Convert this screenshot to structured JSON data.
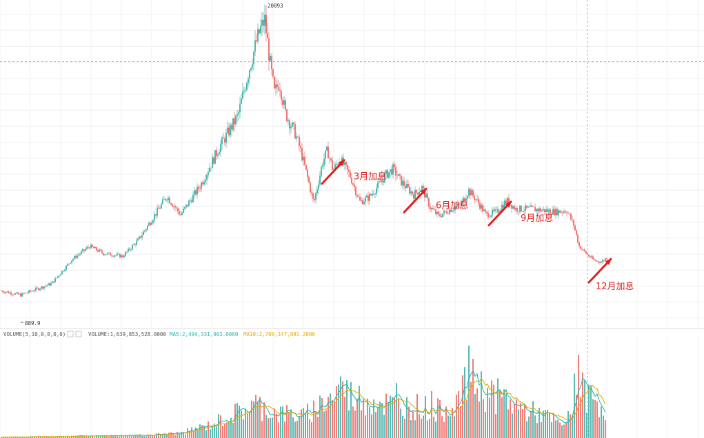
{
  "colors": {
    "up": "#26a69a",
    "down": "#ef5350",
    "annotation": "#e02020",
    "grid": "#f0f0f0",
    "crosshair": "#9a9a9a",
    "vol_label": "#555555",
    "ma5": "#26b6b0",
    "ma10": "#e6a800",
    "text": "#333333"
  },
  "chart_data": {
    "type": "candlestick",
    "title": "",
    "price_panel": {
      "max_label": "20093",
      "min_label": "889.9",
      "ylim": [
        -1400,
        21500
      ],
      "grid": true,
      "keypoints": [
        [
          0,
          1200
        ],
        [
          30,
          889.9
        ],
        [
          75,
          1700
        ],
        [
          105,
          3400
        ],
        [
          130,
          4300
        ],
        [
          150,
          3800
        ],
        [
          178,
          3600
        ],
        [
          200,
          4700
        ],
        [
          218,
          6000
        ],
        [
          242,
          7800
        ],
        [
          262,
          6500
        ],
        [
          290,
          8500
        ],
        [
          318,
          11200
        ],
        [
          345,
          13400
        ],
        [
          362,
          16800
        ],
        [
          372,
          18600
        ],
        [
          378,
          19500
        ],
        [
          384,
          20093
        ],
        [
          392,
          17000
        ],
        [
          398,
          15000
        ],
        [
          405,
          15800
        ],
        [
          414,
          13600
        ],
        [
          428,
          12200
        ],
        [
          437,
          10800
        ],
        [
          446,
          9100
        ],
        [
          455,
          7300
        ],
        [
          468,
          10200
        ],
        [
          475,
          11000
        ],
        [
          483,
          9600
        ],
        [
          493,
          10400
        ],
        [
          508,
          9200
        ],
        [
          522,
          7400
        ],
        [
          535,
          7700
        ],
        [
          548,
          8500
        ],
        [
          560,
          9300
        ],
        [
          570,
          9700
        ],
        [
          582,
          8800
        ],
        [
          600,
          7900
        ],
        [
          612,
          8400
        ],
        [
          624,
          7000
        ],
        [
          636,
          6400
        ],
        [
          650,
          6800
        ],
        [
          668,
          7200
        ],
        [
          680,
          8200
        ],
        [
          693,
          7400
        ],
        [
          705,
          6500
        ],
        [
          720,
          6700
        ],
        [
          735,
          7500
        ],
        [
          748,
          6900
        ],
        [
          772,
          6900
        ],
        [
          790,
          6800
        ],
        [
          805,
          6700
        ],
        [
          822,
          6800
        ],
        [
          832,
          5800
        ],
        [
          840,
          4300
        ],
        [
          852,
          3700
        ],
        [
          862,
          3300
        ],
        [
          872,
          3200
        ],
        [
          880,
          3500
        ]
      ],
      "x_max": 880
    },
    "volume_panel": {
      "label": "VOLUME(5,10,0,0,0,0)",
      "value_label": "VOLUME:1,639,853,528.0000",
      "ma5_label": "MA5:2,494,331,903.0000",
      "ma10_label": "MA10:2,709,147,091.2000",
      "ylim": [
        0,
        7500000000
      ],
      "keypoints": [
        [
          0,
          80000000
        ],
        [
          100,
          120000000
        ],
        [
          200,
          200000000
        ],
        [
          260,
          350000000
        ],
        [
          300,
          900000000
        ],
        [
          340,
          1800000000
        ],
        [
          370,
          2500000000
        ],
        [
          400,
          1900000000
        ],
        [
          440,
          1600000000
        ],
        [
          470,
          2700000000
        ],
        [
          495,
          3600000000
        ],
        [
          510,
          3100000000
        ],
        [
          540,
          2900000000
        ],
        [
          570,
          2400000000
        ],
        [
          600,
          2400000000
        ],
        [
          640,
          2000000000
        ],
        [
          670,
          3100000000
        ],
        [
          680,
          4700000000
        ],
        [
          700,
          3600000000
        ],
        [
          730,
          2900000000
        ],
        [
          760,
          2100000000
        ],
        [
          790,
          1700000000
        ],
        [
          815,
          900000000
        ],
        [
          832,
          1900000000
        ],
        [
          840,
          3600000000
        ],
        [
          852,
          3200000000
        ],
        [
          880,
          2200000000
        ]
      ],
      "spikes": [
        [
          495,
          4600000000
        ],
        [
          574,
          4100000000
        ],
        [
          680,
          6900000000
        ],
        [
          686,
          5900000000
        ],
        [
          832,
          4800000000
        ],
        [
          838,
          6200000000
        ],
        [
          880,
          3900000000
        ],
        [
          520,
          3900000000
        ],
        [
          625,
          3500000000
        ]
      ]
    },
    "annotations": [
      {
        "text": "3月加息",
        "x": 493,
        "y": 10400
      },
      {
        "text": "6月加息",
        "x": 612,
        "y": 8400
      },
      {
        "text": "9月加息",
        "x": 735,
        "y": 7500
      },
      {
        "text": "12月加息",
        "x": 880,
        "y": 3500
      }
    ],
    "crosshair": {
      "x": 852,
      "y": 17200
    }
  }
}
